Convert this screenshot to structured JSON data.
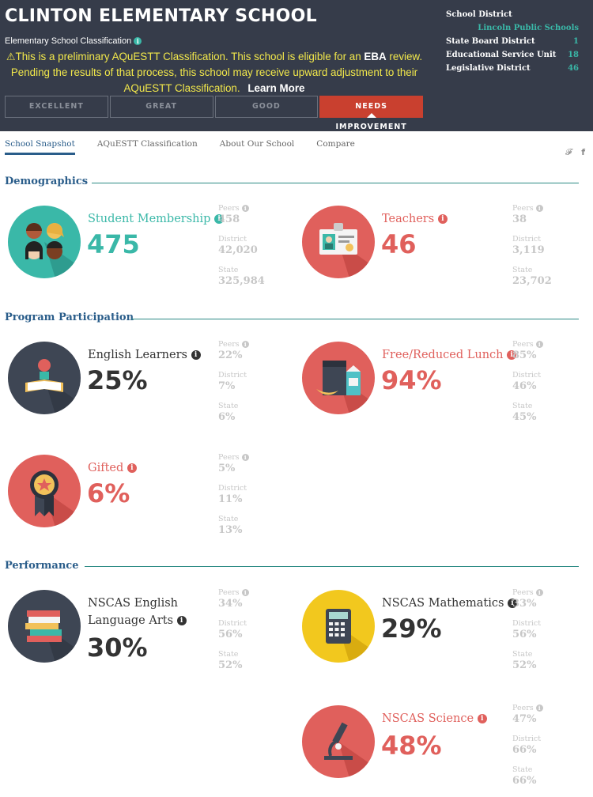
{
  "header": {
    "school_name": "CLINTON ELEMENTARY SCHOOL",
    "classification_label": "Elementary School Classification",
    "notice_part1": "This is a preliminary AQuESTT Classification. This school is eligible for an",
    "notice_eba": "EBA",
    "notice_part2": "review. Pending the results of that process, this school may receive upward adjustment to their AQuESTT Classification.",
    "learn_more": "Learn More",
    "ratings": [
      "EXCELLENT",
      "GREAT",
      "GOOD",
      "NEEDS IMPROVEMENT"
    ],
    "active_rating": "NEEDS IMPROVEMENT"
  },
  "district": {
    "school_district_label": "School District",
    "school_district_value": "Lincoln Public Schools",
    "rows": [
      {
        "label": "State Board District",
        "value": "1"
      },
      {
        "label": "Educational Service Unit",
        "value": "18"
      },
      {
        "label": "Legislative District",
        "value": "46"
      }
    ]
  },
  "tabs": [
    "School Snapshot",
    "AQuESTT Classification",
    "About Our School",
    "Compare"
  ],
  "active_tab": "School Snapshot",
  "social": {
    "twitter": "twitter-icon",
    "facebook": "facebook-icon"
  },
  "sections": {
    "demographics": "Demographics",
    "program": "Program Participation",
    "performance": "Performance"
  },
  "compare_labels": {
    "peers": "Peers",
    "district": "District",
    "state": "State"
  },
  "metrics": {
    "student_membership": {
      "title": "Student Membership",
      "value": "475",
      "peers": "458",
      "district": "42,020",
      "state": "325,984"
    },
    "teachers": {
      "title": "Teachers",
      "value": "46",
      "peers": "38",
      "district": "3,119",
      "state": "23,702"
    },
    "english_learners": {
      "title": "English Learners",
      "value": "25%",
      "peers": "22%",
      "district": "7%",
      "state": "6%"
    },
    "free_reduced_lunch": {
      "title": "Free/Reduced Lunch",
      "value": "94%",
      "peers": "85%",
      "district": "46%",
      "state": "45%"
    },
    "gifted": {
      "title": "Gifted",
      "value": "6%",
      "peers": "5%",
      "district": "11%",
      "state": "13%"
    },
    "nscas_ela": {
      "title_line1": "NSCAS English",
      "title_line2": "Language Arts",
      "value": "30%",
      "peers": "34%",
      "district": "56%",
      "state": "52%"
    },
    "nscas_math": {
      "title": "NSCAS Mathematics",
      "value": "29%",
      "peers": "33%",
      "district": "56%",
      "state": "52%"
    },
    "nscas_science": {
      "title": "NSCAS Science",
      "value": "48%",
      "peers": "47%",
      "district": "66%",
      "state": "66%"
    }
  },
  "colors": {
    "header_bg": "#363c4a",
    "teal": "#3ab8a8",
    "red": "#e0605c",
    "active_rating": "#c9402f",
    "link_blue": "#2a5d8a",
    "notice_yellow": "#f2e84b"
  }
}
